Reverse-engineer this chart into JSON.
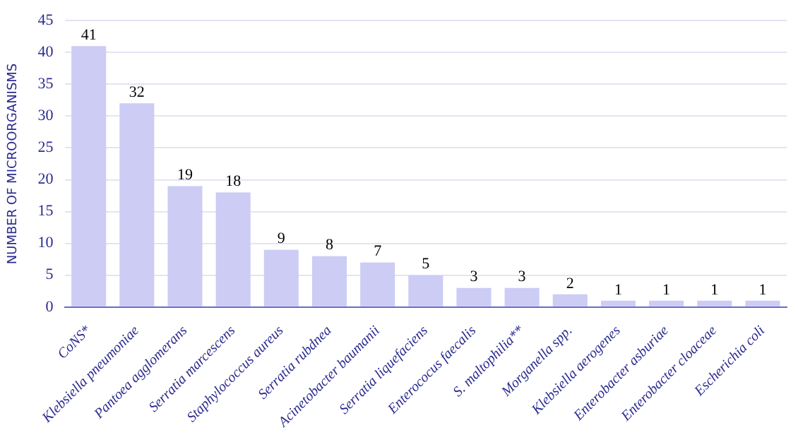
{
  "chart_data": {
    "type": "bar",
    "ylabel": "NUMBER OF MICROORGANISMS",
    "categories": [
      "CoNS*",
      "Klebsiella pneumoniae",
      "Pantoea agglomerans",
      "Serratia marcescens",
      "Staphylococcus aureus",
      "Serratia rubdnea",
      "Acinetobacter baumanii",
      "Serratia liquefaciens",
      "Enterococus faecalis",
      "S. maltophilia**",
      "Morganella spp.",
      "Klebsiella aerogenes",
      "Enterobacter asburiae",
      "Enterobacter cloaceae",
      "Escherichia coli"
    ],
    "values": [
      41,
      32,
      19,
      18,
      9,
      8,
      7,
      5,
      3,
      3,
      2,
      1,
      1,
      1,
      1
    ],
    "color": "#ccccf5",
    "ylim": [
      0,
      45
    ],
    "yticks": [
      0,
      5,
      10,
      15,
      20,
      25,
      30,
      35,
      40,
      45
    ],
    "grid": "y",
    "data_labels": true,
    "legend": false
  }
}
